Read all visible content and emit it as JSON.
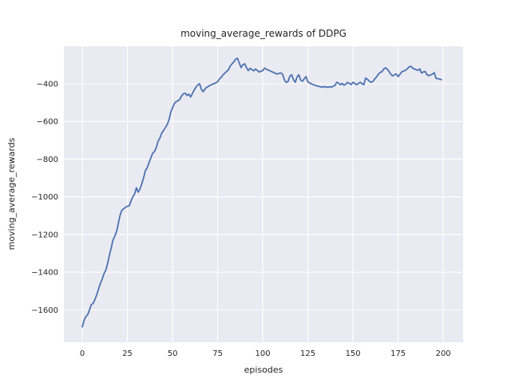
{
  "figure": {
    "title": "moving_average_rewards of DDPG",
    "xlabel": "episodes",
    "ylabel": "moving_average_rewards"
  },
  "chart_data": {
    "type": "line",
    "title": "moving_average_rewards of DDPG",
    "xlabel": "episodes",
    "ylabel": "moving_average_rewards",
    "series": [
      {
        "name": "moving_average_rewards",
        "x_start": 0,
        "x_step": 1,
        "values": [
          -1690,
          -1655,
          -1635,
          -1625,
          -1600,
          -1572,
          -1566,
          -1545,
          -1520,
          -1490,
          -1460,
          -1438,
          -1408,
          -1390,
          -1355,
          -1311,
          -1272,
          -1230,
          -1208,
          -1184,
          -1140,
          -1095,
          -1070,
          -1063,
          -1055,
          -1050,
          -1048,
          -1022,
          -1000,
          -985,
          -952,
          -975,
          -958,
          -930,
          -898,
          -860,
          -845,
          -818,
          -793,
          -768,
          -760,
          -738,
          -705,
          -688,
          -662,
          -648,
          -633,
          -618,
          -592,
          -552,
          -528,
          -505,
          -495,
          -490,
          -483,
          -465,
          -453,
          -450,
          -462,
          -455,
          -470,
          -452,
          -433,
          -418,
          -406,
          -400,
          -430,
          -442,
          -427,
          -419,
          -413,
          -407,
          -403,
          -399,
          -395,
          -389,
          -374,
          -366,
          -352,
          -344,
          -334,
          -326,
          -305,
          -294,
          -283,
          -269,
          -265,
          -290,
          -314,
          -299,
          -294,
          -315,
          -330,
          -318,
          -325,
          -331,
          -322,
          -330,
          -338,
          -333,
          -330,
          -317,
          -322,
          -328,
          -331,
          -336,
          -340,
          -345,
          -348,
          -345,
          -342,
          -350,
          -380,
          -393,
          -388,
          -360,
          -352,
          -378,
          -392,
          -364,
          -352,
          -380,
          -387,
          -373,
          -362,
          -390,
          -396,
          -400,
          -405,
          -408,
          -411,
          -414,
          -416,
          -418,
          -415,
          -417,
          -419,
          -416,
          -418,
          -413,
          -409,
          -392,
          -396,
          -405,
          -398,
          -408,
          -402,
          -393,
          -398,
          -404,
          -392,
          -398,
          -405,
          -398,
          -392,
          -399,
          -405,
          -370,
          -376,
          -386,
          -392,
          -388,
          -375,
          -364,
          -350,
          -340,
          -336,
          -322,
          -315,
          -323,
          -335,
          -350,
          -358,
          -352,
          -348,
          -362,
          -350,
          -337,
          -332,
          -329,
          -321,
          -311,
          -307,
          -316,
          -322,
          -325,
          -329,
          -321,
          -343,
          -337,
          -335,
          -352,
          -357,
          -353,
          -349,
          -341,
          -371,
          -373,
          -375,
          -378
        ]
      }
    ],
    "xticks": [
      0,
      25,
      50,
      75,
      100,
      125,
      150,
      175,
      200
    ],
    "yticks": [
      -400,
      -600,
      -800,
      -1000,
      -1200,
      -1400,
      -1600
    ],
    "xlim": [
      -10.2,
      211
    ],
    "ylim": [
      -1772,
      -201
    ],
    "grid": true,
    "legend_position": "none",
    "colors": {
      "line": "#4c72b0",
      "plot_background": "#eaeaf2",
      "gridline": "#ffffff",
      "text": "#262626",
      "figure_background": "#ffffff"
    }
  }
}
